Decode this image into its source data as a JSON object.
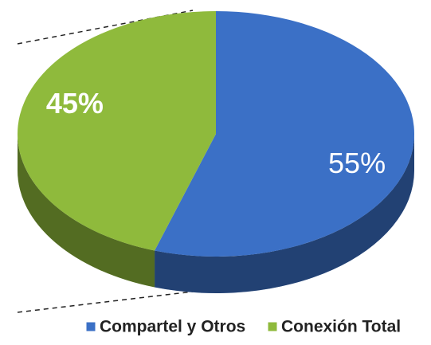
{
  "chart_data": {
    "type": "pie",
    "categories": [
      "Compartel y Otros",
      "Conexión Total"
    ],
    "values": [
      55,
      45
    ],
    "value_labels": [
      "55%",
      "45%"
    ],
    "colors": [
      "#3b70c6",
      "#8fba3c"
    ],
    "legend": "bottom"
  }
}
